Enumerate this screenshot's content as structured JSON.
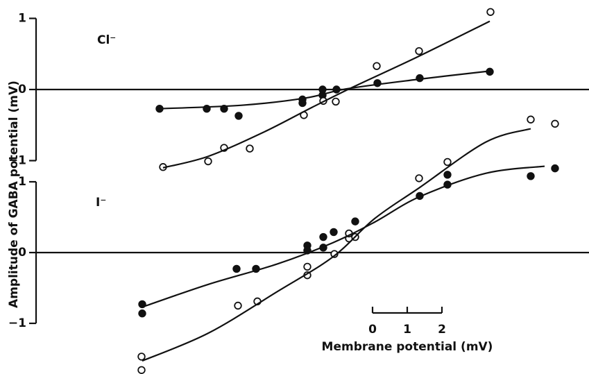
{
  "chart_data": [
    {
      "type": "scatter",
      "annotation": "Cl⁻",
      "xlim": [
        -9.7,
        6.24
      ],
      "ylim": [
        -1.1,
        1.1
      ],
      "yticks": [
        {
          "value": -1,
          "label": "−1"
        },
        0,
        1
      ],
      "series": [
        {
          "marker": "filled",
          "color": "#111111",
          "x": [
            -6.14,
            -4.78,
            -4.28,
            -3.86,
            -2.02,
            -2.02,
            -1.44,
            -1.44,
            -1.04,
            0.14,
            1.36,
            3.38
          ],
          "values": [
            -0.27,
            -0.27,
            -0.27,
            -0.37,
            -0.14,
            -0.19,
            0,
            -0.08,
            0,
            0.09,
            0.16,
            0.25
          ]
        },
        {
          "marker": "open",
          "color": "#111111",
          "x": [
            -6.04,
            -4.74,
            -4.28,
            -3.54,
            -1.98,
            -1.42,
            -1.06,
            0.12,
            1.34,
            3.4
          ],
          "values": [
            -1.09,
            -1.01,
            -0.82,
            -0.83,
            -0.36,
            -0.16,
            -0.17,
            0.33,
            0.54,
            1.09
          ]
        },
        {
          "marker": "line",
          "color": "#111111",
          "x": [
            -6.14,
            -3.74,
            -1.94,
            -0.74,
            1.26,
            3.38
          ],
          "values": [
            -0.27,
            -0.22,
            -0.12,
            0.01,
            0.14,
            0.26
          ]
        },
        {
          "marker": "line",
          "color": "#111111",
          "x": [
            -6.04,
            -4.74,
            -3.14,
            -1.74,
            -0.54,
            1.26,
            3.38
          ],
          "values": [
            -1.1,
            -0.94,
            -0.6,
            -0.25,
            0.04,
            0.45,
            0.96
          ]
        }
      ]
    },
    {
      "type": "scatter",
      "annotation": "I⁻",
      "xlim": [
        -9.7,
        6.24
      ],
      "ylim": [
        -1.7,
        2.0
      ],
      "yticks": [
        {
          "value": -1,
          "label": "−1"
        },
        0,
        1
      ],
      "series": [
        {
          "marker": "filled",
          "color": "#111111",
          "x": [
            -6.64,
            -6.64,
            -3.92,
            -3.36,
            -1.88,
            -1.88,
            -1.42,
            -1.42,
            -1.12,
            -0.5,
            1.36,
            2.16,
            2.16,
            4.56,
            5.26
          ],
          "values": [
            -0.73,
            -0.86,
            -0.23,
            -0.23,
            0.1,
            0.03,
            0.22,
            0.07,
            0.29,
            0.44,
            0.8,
            1.1,
            0.96,
            1.08,
            1.19
          ]
        },
        {
          "marker": "open",
          "color": "#111111",
          "x": [
            -6.66,
            -6.66,
            -3.88,
            -3.32,
            -1.88,
            -1.88,
            -1.1,
            -0.68,
            -0.5,
            -0.68,
            1.34,
            2.16,
            4.56,
            5.26
          ],
          "values": [
            -1.47,
            -1.66,
            -0.75,
            -0.69,
            -0.2,
            -0.32,
            -0.02,
            0.2,
            0.22,
            0.27,
            1.05,
            1.28,
            1.88,
            1.82
          ]
        },
        {
          "marker": "line",
          "color": "#111111",
          "x": [
            -6.64,
            -4.74,
            -2.74,
            -1.14,
            0.06,
            1.36,
            3.26,
            4.96
          ],
          "values": [
            -0.77,
            -0.45,
            -0.16,
            0.14,
            0.43,
            0.79,
            1.12,
            1.22
          ]
        },
        {
          "marker": "line",
          "color": "#111111",
          "x": [
            -6.64,
            -4.74,
            -2.74,
            -1.14,
            0.06,
            1.36,
            3.26,
            4.56
          ],
          "values": [
            -1.53,
            -1.14,
            -0.55,
            -0.06,
            0.48,
            0.92,
            1.56,
            1.75
          ]
        }
      ]
    }
  ],
  "axes": {
    "ylabel": "Amplitude of GABA potential (mV)",
    "xlabel": "Membrane potential (mV)",
    "xticks": [
      0,
      1,
      2
    ]
  }
}
